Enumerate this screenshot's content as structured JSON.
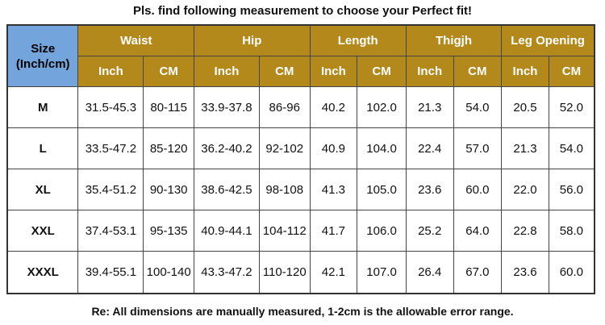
{
  "title": "Pls. find following measurement to choose your Perfect fit!",
  "note": "Re: All dimensions are manually measured, 1-2cm is the allowable error range.",
  "colors": {
    "header_gold": "#b4891b",
    "corner_blue": "#74a4dc"
  },
  "table": {
    "corner_line1": "Size",
    "corner_line2": "(Inch/cm)",
    "groups": [
      "Waist",
      "Hip",
      "Length",
      "Thigjh",
      "Leg Opening"
    ],
    "units": [
      "Inch",
      "CM",
      "Inch",
      "CM",
      "Inch",
      "CM",
      "Inch",
      "CM",
      "Inch",
      "CM"
    ],
    "rows": [
      {
        "size": "M",
        "cells": [
          "31.5-45.3",
          "80-115",
          "33.9-37.8",
          "86-96",
          "40.2",
          "102.0",
          "21.3",
          "54.0",
          "20.5",
          "52.0"
        ]
      },
      {
        "size": "L",
        "cells": [
          "33.5-47.2",
          "85-120",
          "36.2-40.2",
          "92-102",
          "40.9",
          "104.0",
          "22.4",
          "57.0",
          "21.3",
          "54.0"
        ]
      },
      {
        "size": "XL",
        "cells": [
          "35.4-51.2",
          "90-130",
          "38.6-42.5",
          "98-108",
          "41.3",
          "105.0",
          "23.6",
          "60.0",
          "22.0",
          "56.0"
        ]
      },
      {
        "size": "XXL",
        "cells": [
          "37.4-53.1",
          "95-135",
          "40.9-44.1",
          "104-112",
          "41.7",
          "106.0",
          "25.2",
          "64.0",
          "22.8",
          "58.0"
        ]
      },
      {
        "size": "XXXL",
        "cells": [
          "39.4-55.1",
          "100-140",
          "43.3-47.2",
          "110-120",
          "42.1",
          "107.0",
          "26.4",
          "67.0",
          "23.6",
          "60.0"
        ]
      }
    ]
  }
}
